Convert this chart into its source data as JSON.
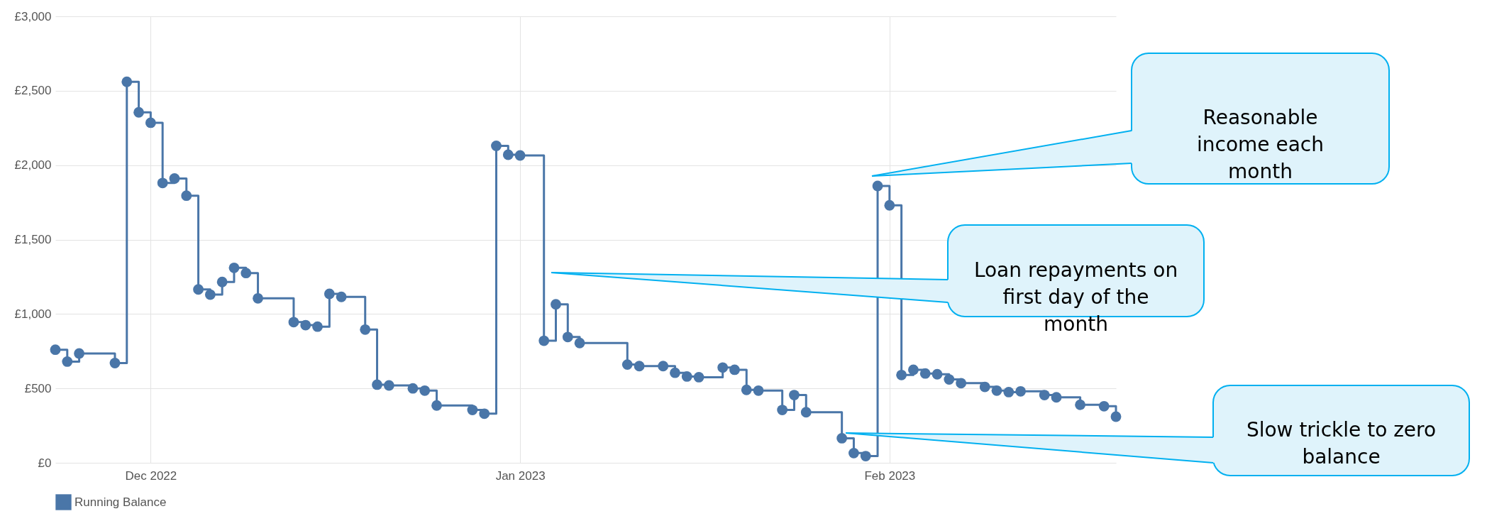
{
  "chart_data": {
    "type": "step",
    "x": [
      "2022-11-23",
      "2022-11-24",
      "2022-11-25",
      "2022-11-28",
      "2022-11-29",
      "2022-11-30",
      "2022-12-01",
      "2022-12-02",
      "2022-12-03",
      "2022-12-04",
      "2022-12-05",
      "2022-12-06",
      "2022-12-07",
      "2022-12-08",
      "2022-12-09",
      "2022-12-10",
      "2022-12-13",
      "2022-12-14",
      "2022-12-15",
      "2022-12-16",
      "2022-12-17",
      "2022-12-19",
      "2022-12-20",
      "2022-12-21",
      "2022-12-23",
      "2022-12-24",
      "2022-12-25",
      "2022-12-28",
      "2022-12-29",
      "2022-12-30",
      "2022-12-31",
      "2023-01-01",
      "2023-01-03",
      "2023-01-04",
      "2023-01-05",
      "2023-01-06",
      "2023-01-10",
      "2023-01-11",
      "2023-01-13",
      "2023-01-14",
      "2023-01-15",
      "2023-01-16",
      "2023-01-18",
      "2023-01-19",
      "2023-01-20",
      "2023-01-21",
      "2023-01-23",
      "2023-01-24",
      "2023-01-25",
      "2023-01-28",
      "2023-01-29",
      "2023-01-30",
      "2023-01-31",
      "2023-02-01",
      "2023-02-02",
      "2023-02-03",
      "2023-02-04",
      "2023-02-05",
      "2023-02-06",
      "2023-02-07",
      "2023-02-09",
      "2023-02-10",
      "2023-02-11",
      "2023-02-12",
      "2023-02-14",
      "2023-02-15",
      "2023-02-17",
      "2023-02-19",
      "2023-02-20"
    ],
    "series": [
      {
        "name": "Running Balance",
        "color": "#4a76a8",
        "values": [
          760,
          680,
          735,
          670,
          2560,
          2355,
          2285,
          1880,
          1910,
          1795,
          1165,
          1130,
          1215,
          1310,
          1275,
          1105,
          945,
          925,
          915,
          1135,
          1115,
          895,
          525,
          520,
          500,
          485,
          385,
          355,
          330,
          2130,
          2070,
          2065,
          820,
          1065,
          845,
          805,
          660,
          650,
          650,
          605,
          580,
          575,
          640,
          625,
          490,
          485,
          355,
          455,
          340,
          165,
          65,
          45,
          1860,
          1730,
          590,
          625,
          600,
          595,
          560,
          535,
          510,
          485,
          475,
          480,
          455,
          440,
          390,
          380,
          310
        ]
      }
    ],
    "xlim": [
      "2022-11-23",
      "2023-02-20"
    ],
    "xticks": [
      {
        "value": "2022-12-01",
        "label": "Dec 2022"
      },
      {
        "value": "2023-01-01",
        "label": "Jan 2023"
      },
      {
        "value": "2023-02-01",
        "label": "Feb 2023"
      }
    ],
    "ylim": [
      0,
      3000
    ],
    "yticks": [
      {
        "value": 0,
        "label": "£0"
      },
      {
        "value": 500,
        "label": "£500"
      },
      {
        "value": 1000,
        "label": "£1,000"
      },
      {
        "value": 1500,
        "label": "£1,500"
      },
      {
        "value": 2000,
        "label": "£2,000"
      },
      {
        "value": 2500,
        "label": "£2,500"
      },
      {
        "value": 3000,
        "label": "£3,000"
      }
    ],
    "grid": true,
    "legend": "bottom",
    "marker": "circle",
    "line_style": "solid",
    "annotations": [
      "Reasonable income each month",
      "Loan repayments on first day of the month",
      "Slow trickle to zero balance"
    ]
  }
}
